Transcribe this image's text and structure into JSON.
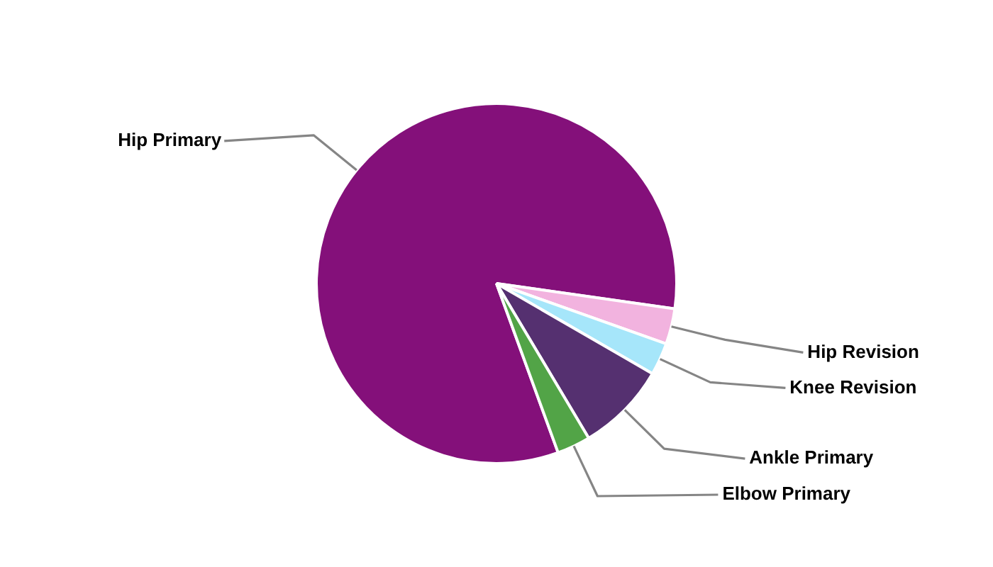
{
  "chart_data": {
    "type": "pie",
    "categories": [
      "Hip Primary",
      "Hip Revision",
      "Knee Revision",
      "Ankle Primary",
      "Elbow Primary"
    ],
    "values": [
      82.8,
      3.2,
      2.9,
      8.1,
      3.0
    ],
    "colors": [
      "#84107a",
      "#f2b3df",
      "#a6e6fa",
      "#553070",
      "#52a447"
    ],
    "legend": false
  }
}
